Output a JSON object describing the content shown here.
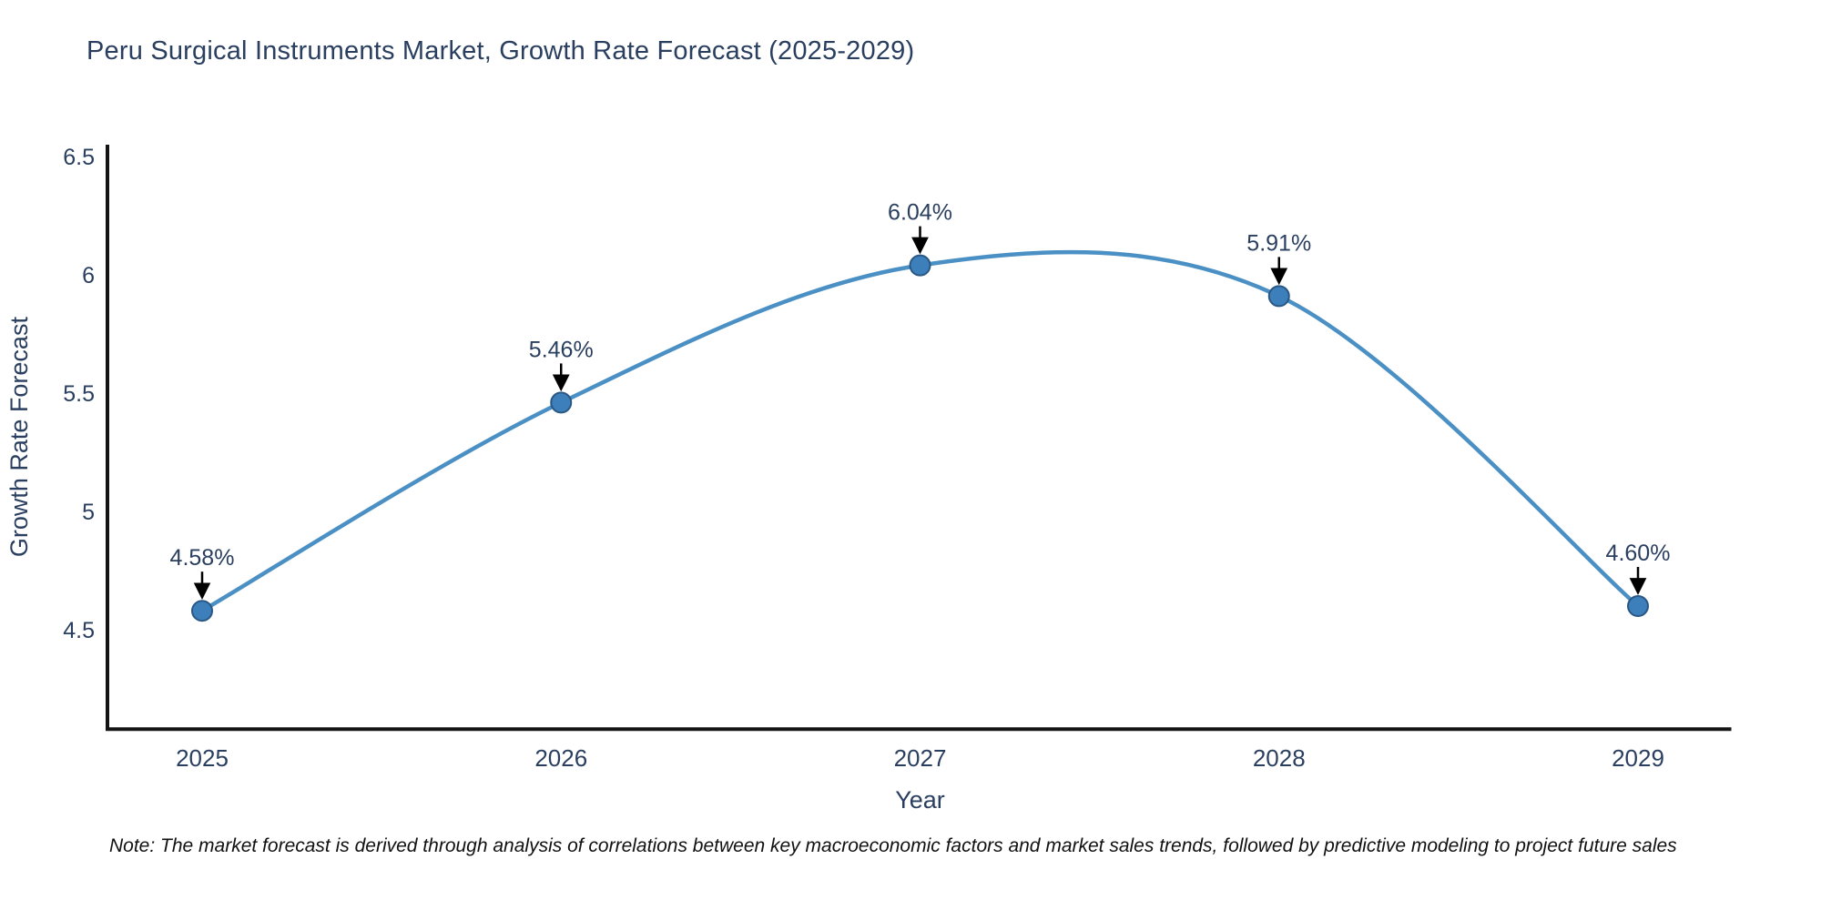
{
  "page": {
    "title": "Peru Surgical Instruments Market, Growth Rate Forecast (2025-2029)",
    "note": "Note: The market forecast is derived through analysis of correlations between key macroeconomic factors and market sales trends, followed by predictive modeling to project future sales"
  },
  "chart_data": {
    "type": "line",
    "title": "Peru Surgical Instruments Market, Growth Rate Forecast (2025-2029)",
    "xlabel": "Year",
    "ylabel": "Growth Rate Forecast",
    "x": [
      2025,
      2026,
      2027,
      2028,
      2029
    ],
    "series": [
      {
        "name": "Growth Rate Forecast",
        "values": [
          4.58,
          5.46,
          6.04,
          5.91,
          4.6
        ]
      }
    ],
    "point_labels": [
      "4.58%",
      "5.46%",
      "6.04%",
      "5.91%",
      "4.60%"
    ],
    "ytick_labels": [
      "4.5",
      "5",
      "5.5",
      "6",
      "6.5"
    ],
    "ylim": [
      4.08,
      6.55
    ],
    "xlim": [
      2024.74,
      2029.26
    ],
    "line_shape": "spline",
    "grid": false,
    "legend_position": "none",
    "annotations_have_arrows": true,
    "colors": {
      "line": "#4a90c4",
      "marker": "#3c7fba",
      "marker_edge": "#2a5783",
      "text": "#2a3f5f",
      "axis": "#141414",
      "arrow": "#000000"
    }
  }
}
